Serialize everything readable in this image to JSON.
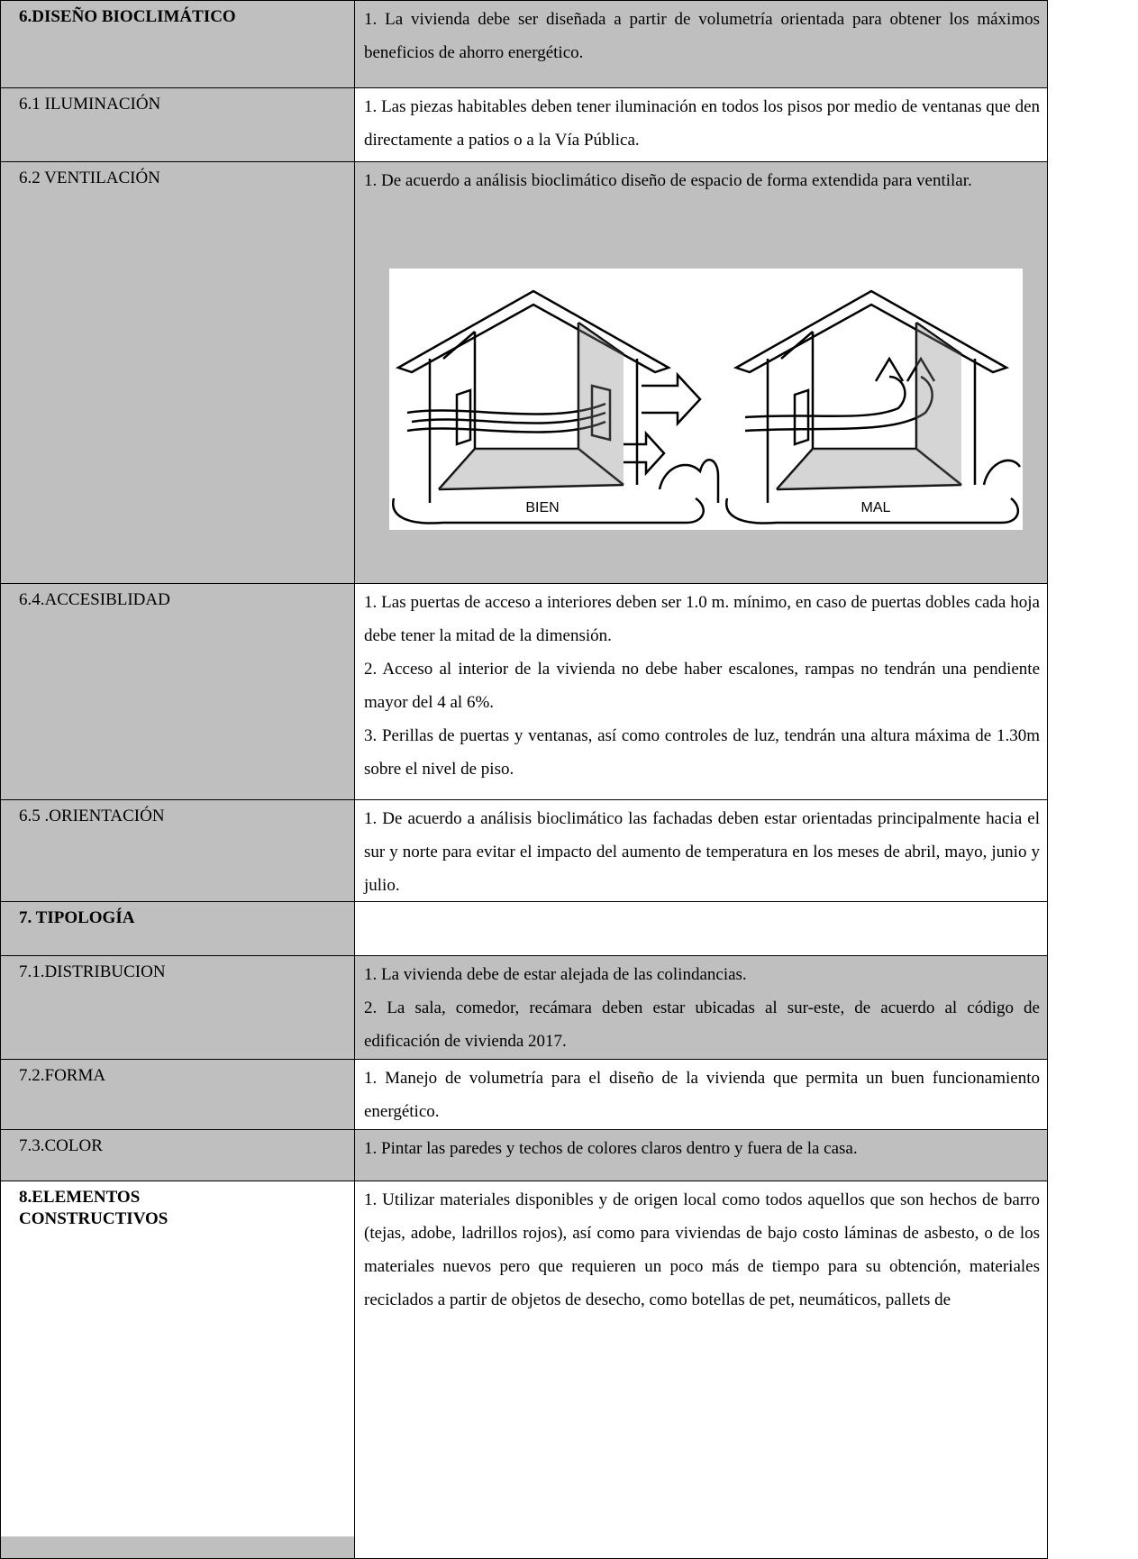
{
  "rows": [
    {
      "label": "6.DISEÑO BIOCLIMÁTICO",
      "paragraphs": [
        "1. La vivienda debe ser diseñada a partir de volumetría orientada para obtener los máximos beneficios de ahorro energético."
      ]
    },
    {
      "label": "6.1  ILUMINACIÓN",
      "paragraphs": [
        "1. Las piezas habitables deben tener iluminación en todos los pisos por medio de ventanas que den directamente a patios o a la Vía Pública."
      ]
    },
    {
      "label": "6.2 VENTILACIÓN",
      "paragraphs": [
        "1. De acuerdo a análisis bioclimático diseño de espacio de forma extendida para ventilar."
      ],
      "figure": {
        "left_label": "BIEN",
        "right_label": "MAL"
      }
    },
    {
      "label": "6.4.ACCESIBLIDAD",
      "paragraphs": [
        "1. Las puertas de acceso a interiores deben ser 1.0 m. mínimo, en caso de puertas dobles cada hoja debe tener la mitad de la dimensión.",
        "2.  Acceso al interior de la vivienda no debe haber escalones, rampas no tendrán una pendiente mayor del 4 al 6%.",
        "3.  Perillas de puertas y ventanas, así como controles de luz, tendrán una altura máxima de 1.30m sobre el nivel de piso."
      ]
    },
    {
      "label": "6.5 .ORIENTACIÓN",
      "paragraphs": [
        "1. De acuerdo a análisis bioclimático las fachadas deben estar orientadas principalmente hacia el sur y norte para evitar el impacto del aumento de temperatura en  los meses de abril, mayo,  junio y julio."
      ]
    },
    {
      "label": "7. TIPOLOGÍA",
      "paragraphs": []
    },
    {
      "label": "7.1.DISTRIBUCION",
      "paragraphs": [
        "1. La vivienda debe de estar alejada de las colindancias.",
        "2. La sala, comedor, recámara deben estar ubicadas al sur-este, de acuerdo al código de edificación de  vivienda 2017."
      ]
    },
    {
      "label": "7.2.FORMA",
      "paragraphs": [
        "1. Manejo de volumetría para el diseño de la vivienda que permita un buen funcionamiento energético."
      ]
    },
    {
      "label": "7.3.COLOR",
      "paragraphs": [
        "1. Pintar las paredes y techos de colores claros dentro y fuera de la casa."
      ]
    },
    {
      "label": "8.ELEMENTOS CONSTRUCTIVOS",
      "paragraphs": [
        "1. Utilizar materiales disponibles y de origen local como todos aquellos que son hechos de barro (tejas, adobe, ladrillos rojos), así como para viviendas de bajo costo láminas de asbesto, o de los materiales nuevos pero que requieren un poco más de tiempo para su obtención, materiales reciclados a partir de objetos de desecho, como botellas de pet, neumáticos, pallets de"
      ]
    }
  ]
}
